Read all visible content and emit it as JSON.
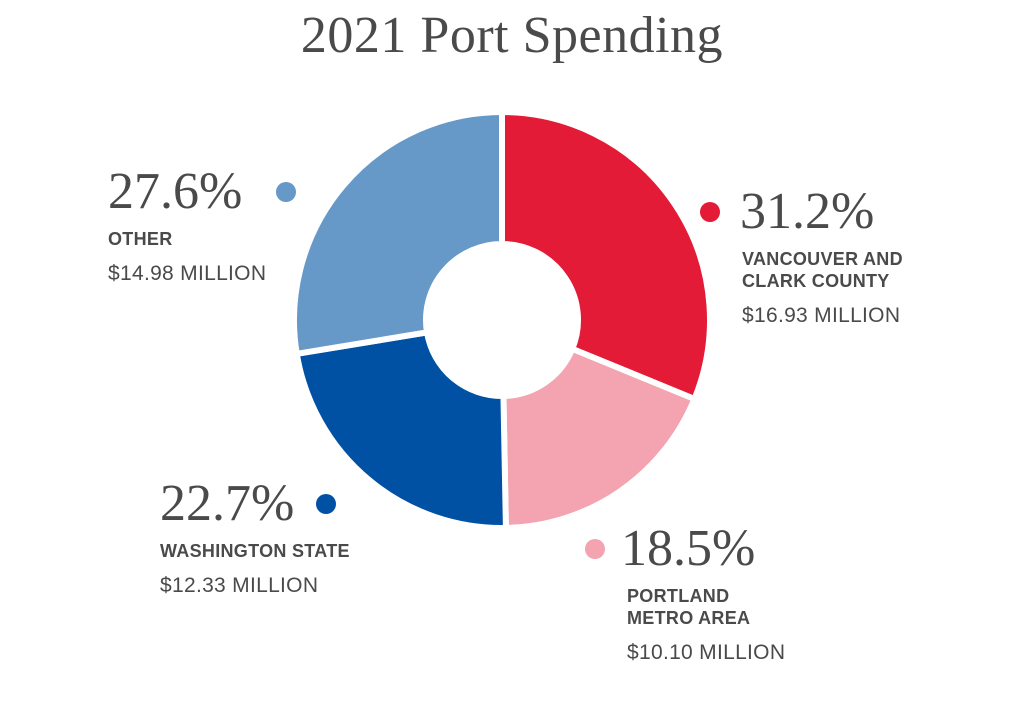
{
  "chart_data": {
    "type": "pie",
    "title": "2021 Port Spending",
    "slices": [
      {
        "label": "VANCOUVER AND CLARK COUNTY",
        "label_lines": [
          "VANCOUVER AND",
          "CLARK COUNTY"
        ],
        "percent": 31.2,
        "percent_label": "31.2%",
        "amount": 16.93,
        "amount_label": "$16.93 MILLION",
        "color": "#e31b37"
      },
      {
        "label": "PORTLAND METRO AREA",
        "label_lines": [
          "PORTLAND",
          "METRO AREA"
        ],
        "percent": 18.5,
        "percent_label": "18.5%",
        "amount": 10.1,
        "amount_label": "$10.10 MILLION",
        "color": "#f3a4b0"
      },
      {
        "label": "WASHINGTON STATE",
        "label_lines": [
          "WASHINGTON STATE"
        ],
        "percent": 22.7,
        "percent_label": "22.7%",
        "amount": 12.33,
        "amount_label": "$12.33 MILLION",
        "color": "#0051a3"
      },
      {
        "label": "OTHER",
        "label_lines": [
          "OTHER"
        ],
        "percent": 27.6,
        "percent_label": "27.6%",
        "amount": 14.98,
        "amount_label": "$14.98 MILLION",
        "color": "#6698c8"
      }
    ],
    "donut": true,
    "start_angle_deg": 0,
    "direction": "clockwise"
  }
}
